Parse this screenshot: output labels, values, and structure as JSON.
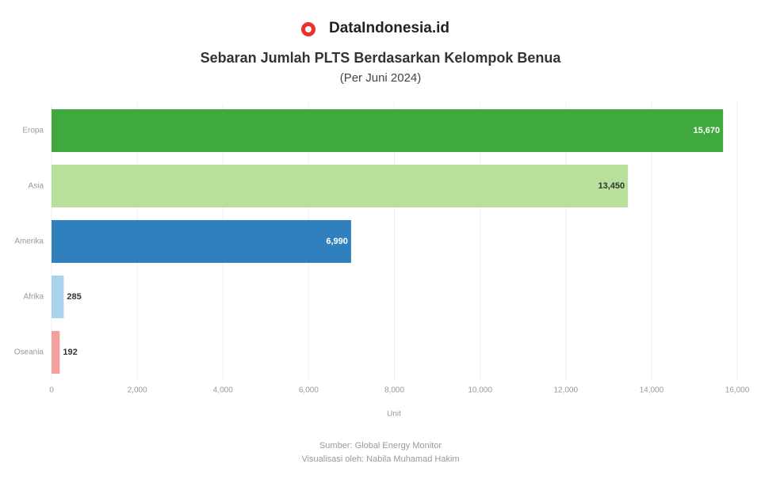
{
  "brand": "DataIndonesia.id",
  "chart_data": {
    "type": "hbar",
    "title": "Sebaran Jumlah PLTS Berdasarkan Kelompok Benua",
    "subtitle": "(Per Juni 2024)",
    "categories": [
      "Eropa",
      "Asia",
      "Amerika",
      "Afrika",
      "Oseania"
    ],
    "values": [
      15670,
      13450,
      6990,
      285,
      192
    ],
    "value_labels": [
      "15,670",
      "13,450",
      "6,990",
      "285",
      "192"
    ],
    "colors": [
      "#3fa93f",
      "#b8e09a",
      "#2f80bd",
      "#aad4ee",
      "#f4a09c"
    ],
    "xlim": [
      0,
      16000
    ],
    "xticks": [
      0,
      {
        "value": 2000,
        "label": "2,000"
      },
      {
        "value": 4000,
        "label": "4,000"
      },
      {
        "value": 6000,
        "label": "6,000"
      },
      {
        "value": 8000,
        "label": "8,000"
      },
      {
        "value": 10000,
        "label": "10,000"
      },
      {
        "value": 12000,
        "label": "12,000"
      },
      {
        "value": 14000,
        "label": "14,000"
      },
      {
        "value": 16000,
        "label": "16,000"
      }
    ],
    "x_label": "Unit",
    "grid": true,
    "source": "Sumber: Global Energy Monitor",
    "credit": "Visualisasi oleh: Nabila Muhamad Hakim"
  }
}
